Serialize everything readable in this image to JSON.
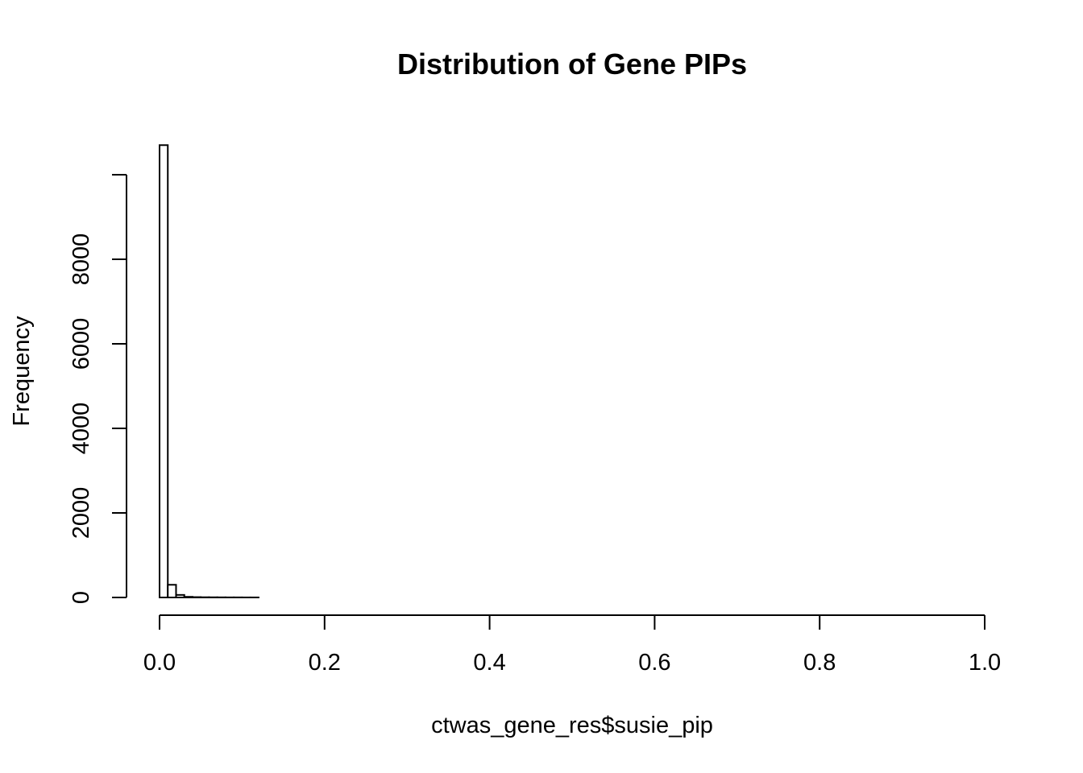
{
  "chart_data": {
    "type": "bar",
    "title": "Distribution of Gene PIPs",
    "xlabel": "ctwas_gene_res$susie_pip",
    "ylabel": "Frequency",
    "xlim": [
      0,
      1
    ],
    "ylim": [
      0,
      10000
    ],
    "x_ticks": [
      "0.0",
      "0.2",
      "0.4",
      "0.6",
      "0.8",
      "1.0"
    ],
    "y_ticks": [
      "0",
      "2000",
      "4000",
      "6000",
      "8000"
    ],
    "bin_edges": [
      0,
      0.01,
      0.02,
      0.03,
      0.04,
      0.05,
      0.06,
      0.07,
      0.08,
      0.09,
      0.1,
      0.11,
      0.12
    ],
    "values": [
      10700,
      300,
      60,
      15,
      8,
      5,
      4,
      3,
      2,
      2,
      1,
      1
    ],
    "grid": false,
    "legend": "none",
    "colors": {
      "bar_fill": "#ffffff",
      "bar_stroke": "#000000",
      "axis": "#000000"
    }
  }
}
